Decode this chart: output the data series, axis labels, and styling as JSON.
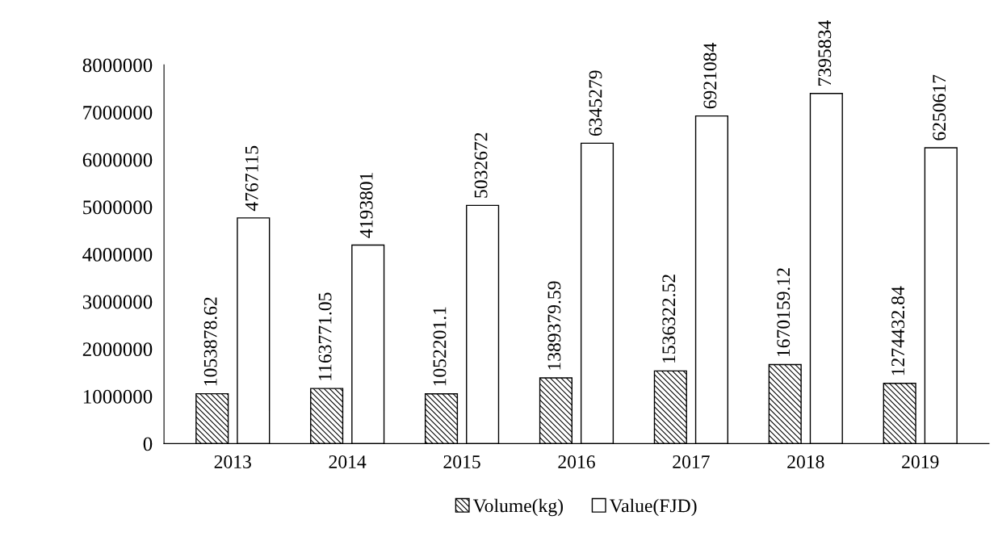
{
  "chart_data": {
    "type": "bar",
    "categories": [
      "2013",
      "2014",
      "2015",
      "2016",
      "2017",
      "2018",
      "2019"
    ],
    "series": [
      {
        "name": "Volume(kg)",
        "color": "#000000",
        "values": [
          1053878.62,
          1163771.05,
          1052201.1,
          1389379.59,
          1536322.52,
          1670159.12,
          1274432.84
        ]
      },
      {
        "name": "Value(FJD)",
        "color": "#ffffff",
        "values": [
          4767115,
          4193801,
          5032672,
          6345279,
          6921084,
          7395834,
          6250617
        ]
      }
    ],
    "ylim": [
      0,
      8000000
    ],
    "yticks": [
      0,
      1000000,
      2000000,
      3000000,
      4000000,
      5000000,
      6000000,
      7000000,
      8000000
    ],
    "data_labels": true,
    "grid": false,
    "legend": "bottom"
  }
}
